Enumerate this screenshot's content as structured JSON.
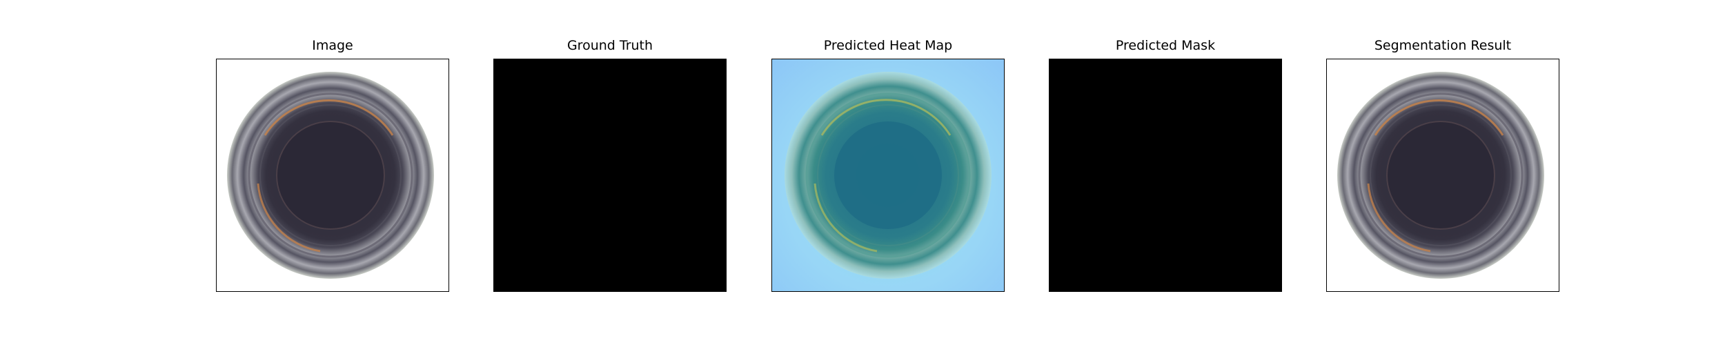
{
  "panels": [
    {
      "title": "Image",
      "kind": "photo"
    },
    {
      "title": "Ground Truth",
      "kind": "mask"
    },
    {
      "title": "Predicted Heat Map",
      "kind": "heatmap"
    },
    {
      "title": "Predicted Mask",
      "kind": "mask"
    },
    {
      "title": "Segmentation Result",
      "kind": "photo"
    }
  ],
  "colors": {
    "background": "#ffffff",
    "mask": "#000000",
    "bottle_dark": "#2b2836",
    "bottle_rim": "#6f6f78",
    "amber": "#c8834a",
    "heatmap_bg": "#8fd0f5",
    "heatmap_teal": "#2a7f8a"
  }
}
